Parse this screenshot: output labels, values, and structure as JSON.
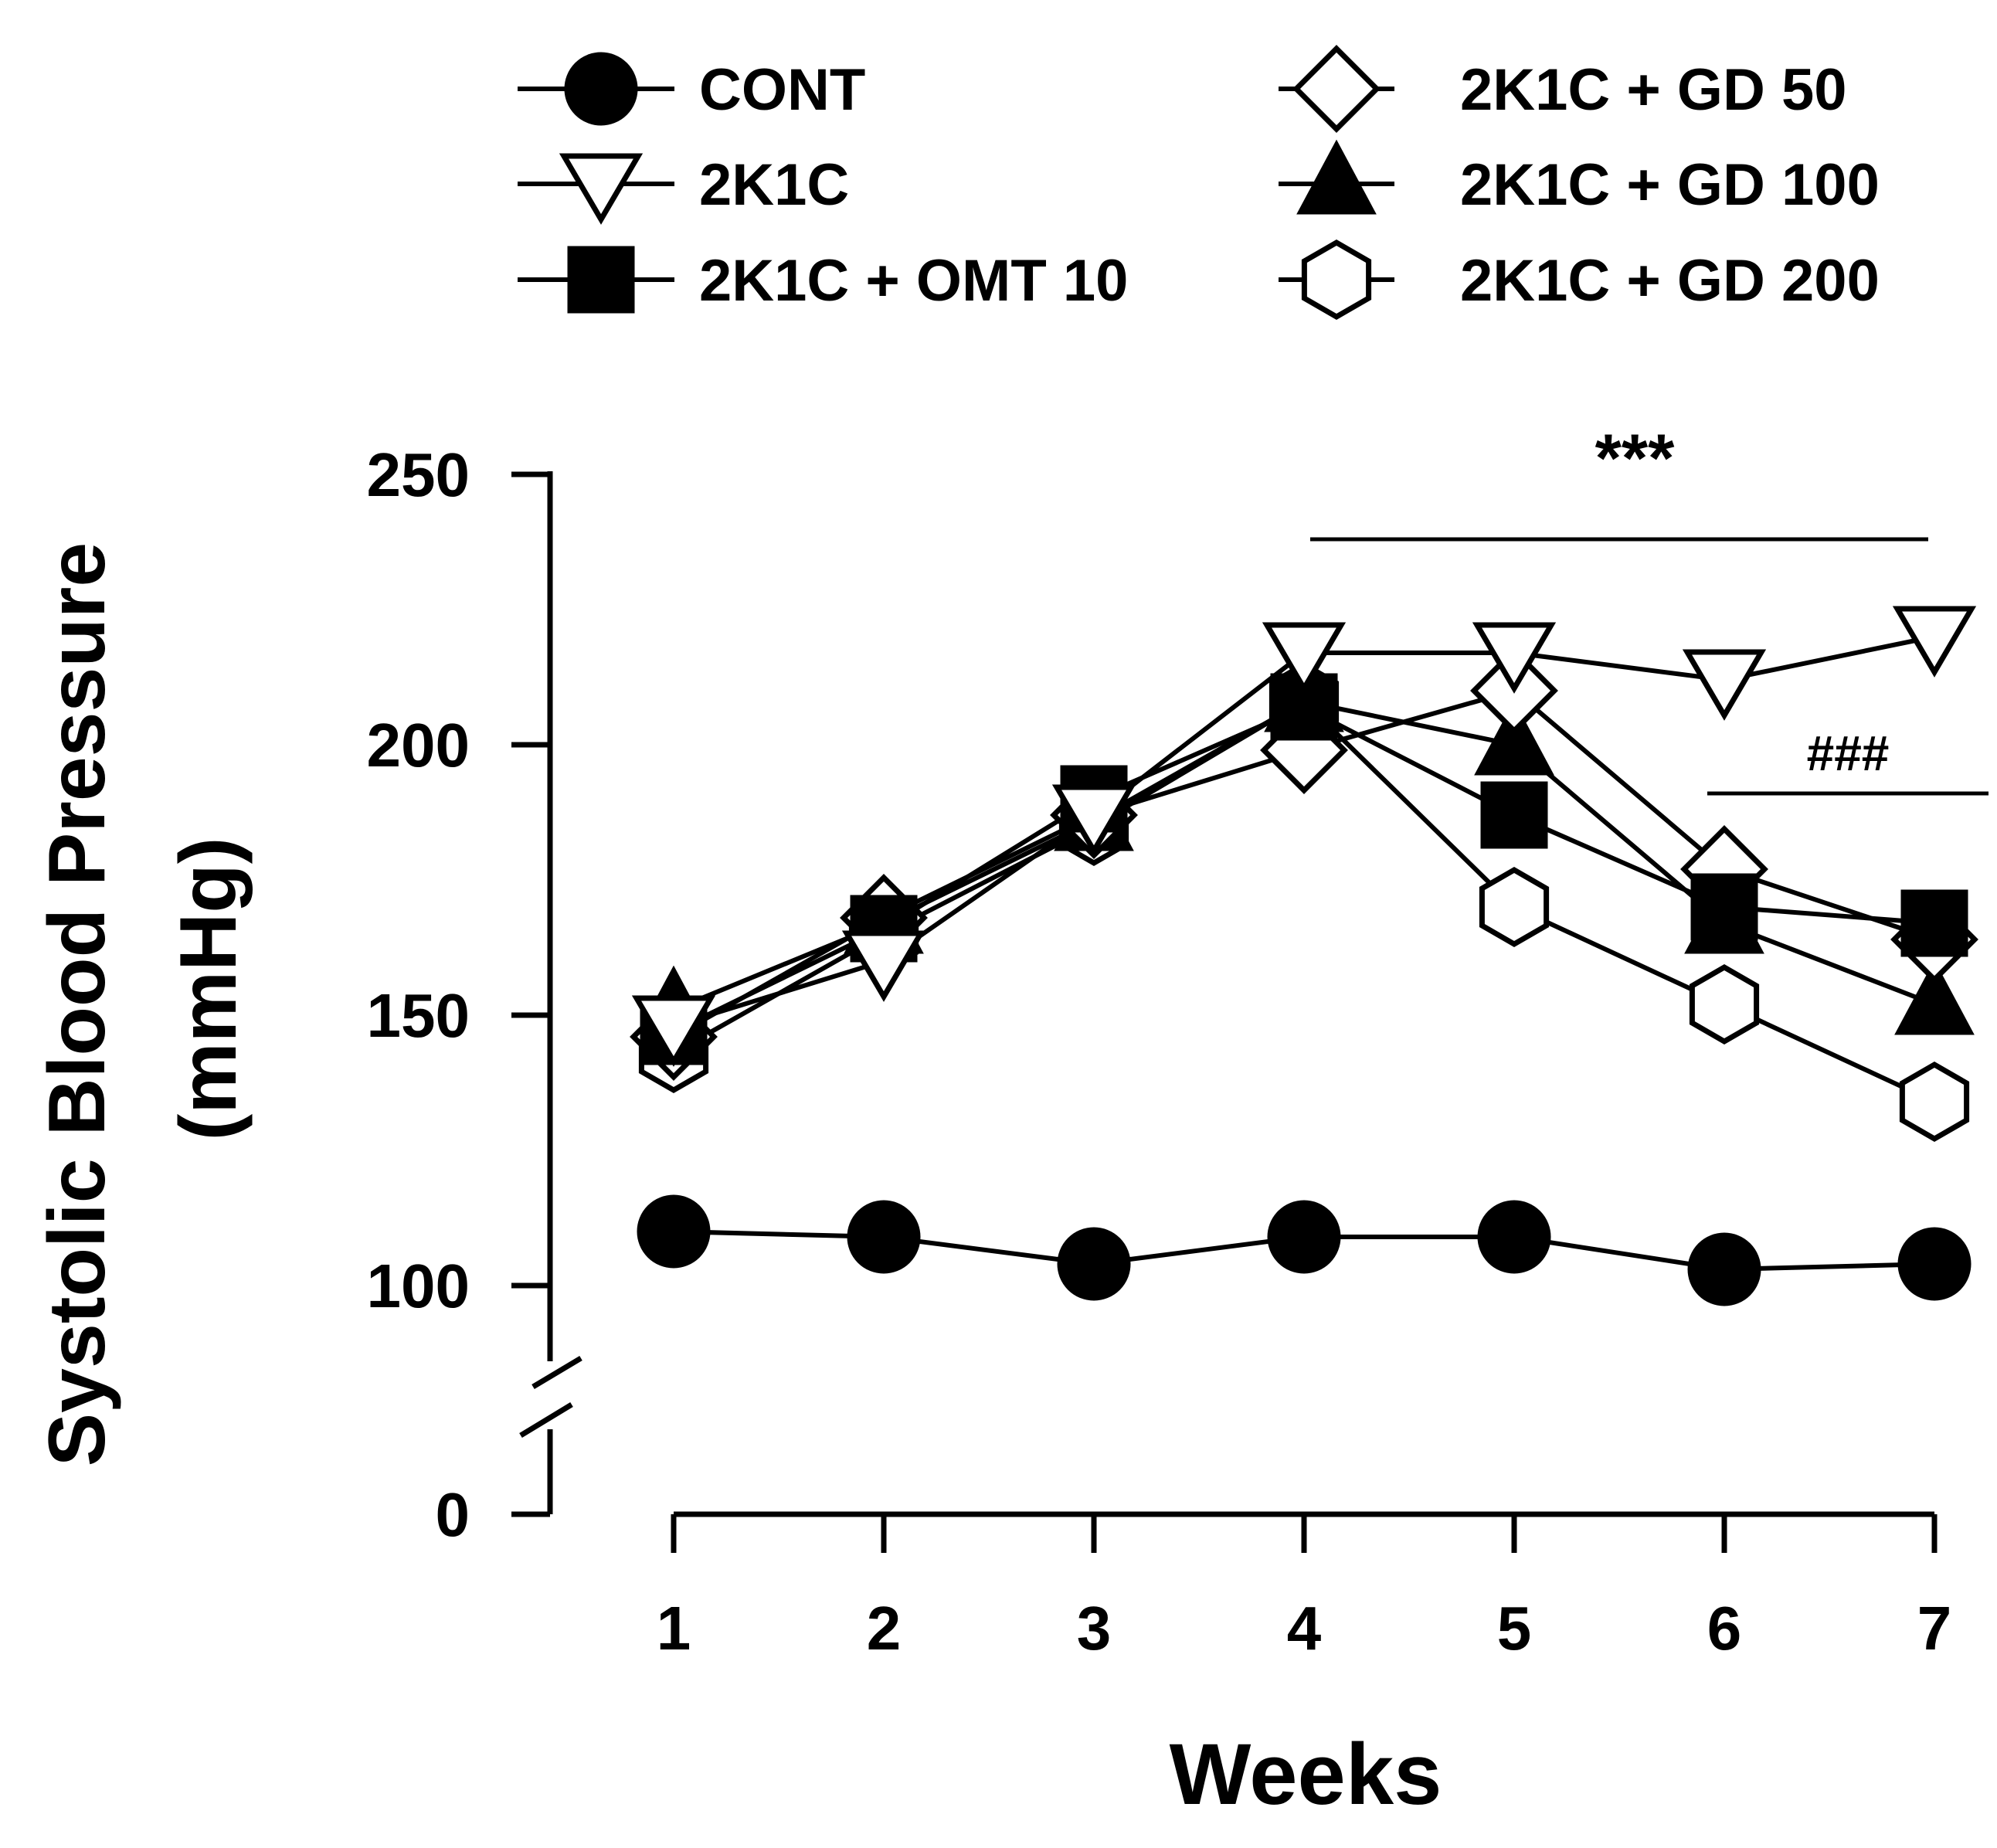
{
  "chart_data": {
    "type": "line",
    "title": "",
    "xlabel": "Weeks",
    "ylabel": "Systolic Blood Pressure",
    "ylabel_unit": "(mmHg)",
    "x": [
      1,
      2,
      3,
      4,
      5,
      6,
      7
    ],
    "ylim": [
      0,
      250
    ],
    "y_axis_break": [
      0,
      100
    ],
    "y_ticks": [
      {
        "value": 0,
        "label": "0"
      },
      {
        "value": 100,
        "label": "100"
      },
      {
        "value": 150,
        "label": "150"
      },
      {
        "value": 200,
        "label": "200"
      },
      {
        "value": 250,
        "label": "250"
      }
    ],
    "x_ticks": [
      "1",
      "2",
      "3",
      "4",
      "5",
      "6",
      "7"
    ],
    "series": [
      {
        "name": "CONT",
        "marker": "circle",
        "fill": "#000000",
        "values": [
          110,
          109,
          104,
          109,
          109,
          103,
          104
        ]
      },
      {
        "name": "2K1C",
        "marker": "triangle-down",
        "fill": "#ffffff",
        "values": [
          148,
          160,
          187,
          217,
          217,
          212,
          220
        ]
      },
      {
        "name": "2K1C + OMT 10",
        "marker": "square",
        "fill": "#000000",
        "values": [
          147,
          166,
          190,
          207,
          187,
          170,
          167
        ]
      },
      {
        "name": "2K1C + GD 50",
        "marker": "diamond",
        "fill": "#ffffff",
        "values": [
          146,
          168,
          187,
          199,
          210,
          177,
          164
        ]
      },
      {
        "name": "2K1C + GD 100",
        "marker": "triangle-up",
        "fill": "#000000",
        "values": [
          151,
          167,
          186,
          208,
          200,
          167,
          152
        ]
      },
      {
        "name": "2K1C + GD 200",
        "marker": "hexagon",
        "fill": "#ffffff",
        "values": [
          143,
          165,
          185,
          208,
          170,
          152,
          134
        ]
      }
    ],
    "annotations": [
      {
        "text": "***",
        "x_from": 4,
        "x_to": 7,
        "y": 238
      },
      {
        "text": "###",
        "x_from": 6,
        "x_to": 7,
        "y": 191
      }
    ],
    "legend_position": "top"
  }
}
